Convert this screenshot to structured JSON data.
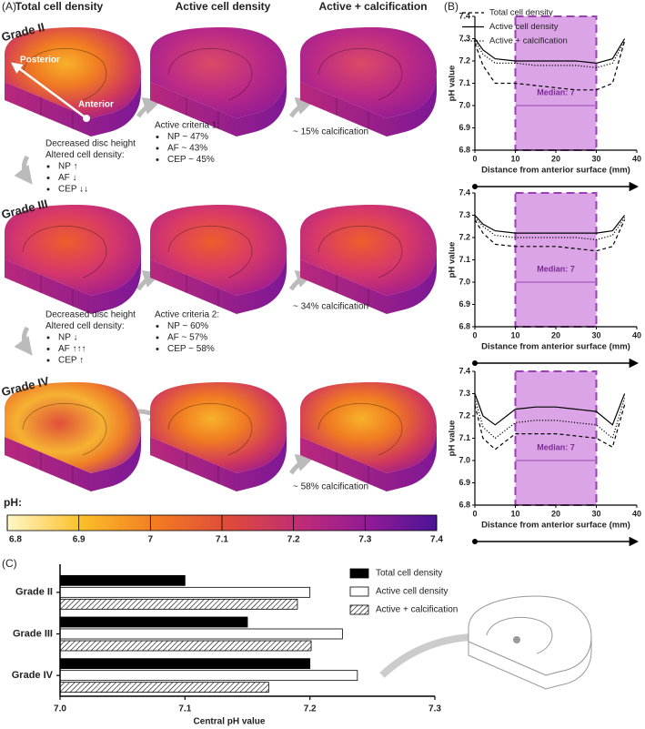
{
  "panels": {
    "a": "(A)",
    "b": "(B)",
    "c": "(C)"
  },
  "panel_a": {
    "columns": [
      "Total cell density",
      "Active cell density",
      "Active + calcification"
    ],
    "rows": [
      "Grade II",
      "Grade III",
      "Grade IV"
    ],
    "disc_labels": {
      "posterior": "Posterior",
      "anterior": "Anterior"
    },
    "notes": [
      {
        "lines": [
          "Decreased disc height",
          "Altered cell density:"
        ],
        "bullets": [
          "NP ↑",
          "AF ↓",
          "CEP ↓↓"
        ]
      },
      {
        "lines": [
          "Active criteria 1:"
        ],
        "bullets": [
          "NP ~ 47%",
          "AF ~  43%",
          "CEP ~ 45%"
        ]
      },
      {
        "lines": [
          "Decreased disc height",
          "Altered cell density:"
        ],
        "bullets": [
          "NP ↓",
          "AF ↑↑↑",
          "CEP ↑"
        ]
      },
      {
        "lines": [
          "Active criteria 2:"
        ],
        "bullets": [
          "NP ~ 60%",
          "AF ~  57%",
          "CEP ~ 58%"
        ]
      }
    ],
    "calcification": [
      "~ 15% calcification",
      "~ 34% calcification",
      "~ 58% calcification"
    ],
    "colorbar": {
      "label": "pH:",
      "lim": [
        6.8,
        7.4
      ],
      "ticks": [
        6.8,
        6.9,
        7,
        7.1,
        7.2,
        7.3,
        7.4
      ]
    }
  },
  "chart_data": [
    {
      "type": "line",
      "xlabel": "Distance from anterior surface (mm)",
      "ylabel": "pH value",
      "x": [
        0,
        2,
        5,
        10,
        15,
        20,
        25,
        30,
        34,
        37
      ],
      "series": [
        {
          "name": "Total cell density",
          "color": "#000000",
          "style": "dashed",
          "values": [
            7.28,
            7.18,
            7.1,
            7.1,
            7.09,
            7.08,
            7.07,
            7.07,
            7.1,
            7.29
          ]
        },
        {
          "name": "Active cell density",
          "color": "#000000",
          "style": "solid",
          "values": [
            7.3,
            7.25,
            7.21,
            7.2,
            7.2,
            7.2,
            7.2,
            7.19,
            7.21,
            7.3
          ]
        },
        {
          "name": "Active + calcification",
          "color": "#000000",
          "style": "dotted",
          "values": [
            7.29,
            7.23,
            7.19,
            7.19,
            7.18,
            7.18,
            7.18,
            7.17,
            7.19,
            7.29
          ]
        }
      ],
      "band": [
        10,
        30
      ],
      "median": 7,
      "annotation": "Median: 7",
      "legend": "upper right",
      "xlim": [
        0,
        40
      ],
      "xticks": [
        0,
        10,
        20,
        30,
        40
      ],
      "ylim": [
        6.8,
        7.4
      ],
      "yticks": [
        6.8,
        6.9,
        {
          "value": 7,
          "label": "7.0"
        },
        7.1,
        7.2,
        7.3,
        7.4
      ]
    },
    {
      "type": "line",
      "xlabel": "Distance from anterior surface (mm)",
      "ylabel": "pH value",
      "x": [
        0,
        2,
        5,
        10,
        15,
        20,
        25,
        30,
        34,
        37
      ],
      "series": [
        {
          "color": "#000000",
          "style": "dashed",
          "values": [
            7.28,
            7.22,
            7.17,
            7.16,
            7.16,
            7.16,
            7.15,
            7.14,
            7.16,
            7.28
          ]
        },
        {
          "color": "#000000",
          "style": "solid",
          "values": [
            7.3,
            7.26,
            7.23,
            7.22,
            7.22,
            7.22,
            7.22,
            7.22,
            7.23,
            7.3
          ]
        },
        {
          "color": "#000000",
          "style": "dotted",
          "values": [
            7.29,
            7.25,
            7.21,
            7.2,
            7.2,
            7.2,
            7.2,
            7.19,
            7.21,
            7.29
          ]
        }
      ],
      "band": [
        10,
        30
      ],
      "median": 7,
      "annotation": "Median: 7",
      "xlim": [
        0,
        40
      ],
      "xticks": [
        0,
        10,
        20,
        30,
        40
      ],
      "ylim": [
        6.8,
        7.4
      ],
      "yticks": [
        6.8,
        6.9,
        {
          "value": 7,
          "label": "7.0"
        },
        7.1,
        7.2,
        7.3,
        7.4
      ]
    },
    {
      "type": "line",
      "xlabel": "Distance from anterior surface (mm)",
      "ylabel": "pH value",
      "x": [
        0,
        2,
        5,
        10,
        15,
        20,
        25,
        30,
        34,
        37
      ],
      "series": [
        {
          "color": "#000000",
          "style": "dashed",
          "values": [
            7.25,
            7.1,
            7.05,
            7.12,
            7.12,
            7.12,
            7.11,
            7.1,
            7.06,
            7.25
          ]
        },
        {
          "color": "#000000",
          "style": "solid",
          "values": [
            7.3,
            7.2,
            7.16,
            7.23,
            7.24,
            7.24,
            7.23,
            7.22,
            7.16,
            7.3
          ]
        },
        {
          "color": "#000000",
          "style": "dotted",
          "values": [
            7.28,
            7.15,
            7.1,
            7.17,
            7.18,
            7.18,
            7.17,
            7.16,
            7.1,
            7.28
          ]
        }
      ],
      "band": [
        10,
        30
      ],
      "median": 7,
      "annotation": "Median: 7",
      "xlim": [
        0,
        40
      ],
      "xticks": [
        0,
        10,
        20,
        30,
        40
      ],
      "ylim": [
        6.8,
        7.4
      ],
      "yticks": [
        6.8,
        6.9,
        {
          "value": 7,
          "label": "7.0"
        },
        7.1,
        7.2,
        7.3,
        7.4
      ]
    },
    {
      "type": "hbar",
      "xlabel": "Central pH value",
      "categories": [
        "Grade II",
        "Grade III",
        "Grade IV"
      ],
      "series": [
        {
          "name": "Total cell density",
          "color": "#000000",
          "values": [
            7.1,
            7.15,
            7.2
          ]
        },
        {
          "name": "Active cell density",
          "color": "#ffffff",
          "values": [
            7.2,
            7.226,
            7.238
          ]
        },
        {
          "name": "Active + calcification",
          "color": "#ffffff",
          "hatch": true,
          "values": [
            7.19,
            7.201,
            7.167
          ]
        }
      ],
      "xlim": [
        7.0,
        7.3
      ],
      "xticks": [
        {
          "value": 7,
          "label": "7.0"
        },
        7.1,
        7.2,
        7.3
      ],
      "legend": "upper right"
    }
  ]
}
